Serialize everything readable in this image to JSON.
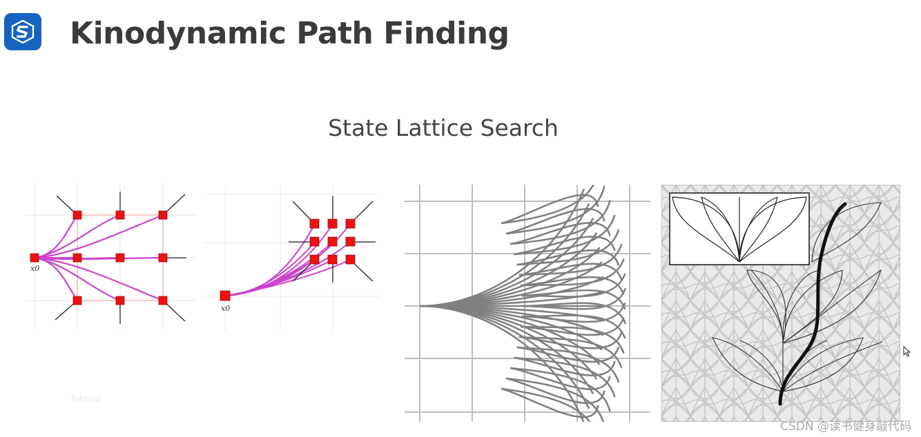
{
  "header": {
    "title": "Kinodynamic Path Finding",
    "logo": "course-logo-icon",
    "logo_color": "#1565c0"
  },
  "slide": {
    "subtitle": "State Lattice Search"
  },
  "figures": {
    "fig1_origin_label": "x0",
    "fig2_origin_label": "x0",
    "node_color": "#ee1111",
    "edge_color": "#cc44cc",
    "fan_color": "#808080"
  },
  "footer": {
    "faint_mark": "Tutorial",
    "watermark": "CSDN @读书健身敲代码"
  }
}
